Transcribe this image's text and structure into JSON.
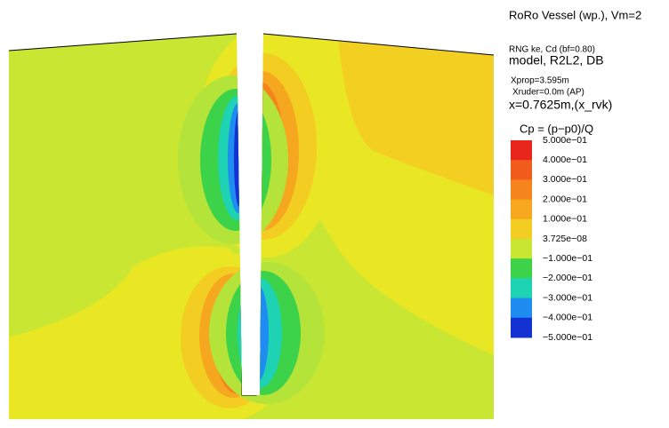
{
  "header": {
    "title": "RoRo Vessel (wp.), Vm=2",
    "lines": [
      "RNG ke, Cd (bf=0.80)",
      "model, R2L2, DB",
      "Xprop=3.595m",
      "Xruder=0.0m (AP)",
      "x=0.7625m,(x_rvk)"
    ]
  },
  "legend": {
    "title": "Cp = (p−p0)/Q",
    "labels": [
      "5.000e−01",
      "4.000e−01",
      "3.000e−01",
      "2.000e−01",
      "1.000e−01",
      "3.725e−08",
      "−1.000e−01",
      "−2.000e−01",
      "−3.000e−01",
      "−4.000e−01",
      "−5.000e−01"
    ]
  }
}
